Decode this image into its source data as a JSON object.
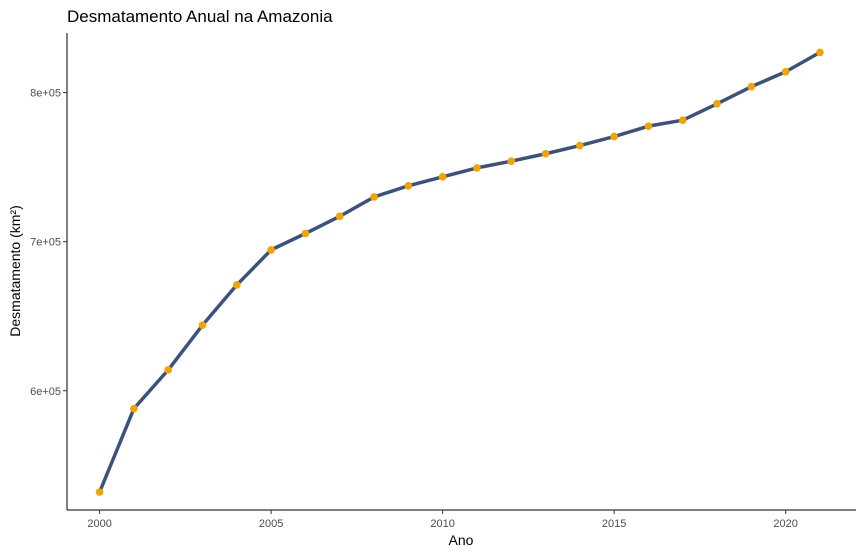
{
  "chart_data": {
    "type": "line",
    "title": "Desmatamento Anual na Amazonia",
    "xlabel": "Ano",
    "ylabel": "Desmatamento (km²)",
    "x_ticks": [
      2000,
      2005,
      2010,
      2015,
      2020
    ],
    "x_tick_labels": [
      "2000",
      "2005",
      "2010",
      "2015",
      "2020"
    ],
    "y_ticks": [
      600000,
      700000,
      800000
    ],
    "y_tick_labels": [
      "6e+05",
      "7e+05",
      "8e+05"
    ],
    "xlim": [
      1999.05,
      2022.05
    ],
    "ylim": [
      520000,
      840000
    ],
    "grid": false,
    "line_color": "#3b5280",
    "point_color": "#f5a300",
    "series": [
      {
        "x": [
          2000,
          2001,
          2002,
          2003,
          2004,
          2005,
          2006,
          2007,
          2008,
          2009,
          2010,
          2011,
          2012,
          2013,
          2014,
          2015,
          2016,
          2017,
          2018,
          2019,
          2020,
          2021
        ],
        "y": [
          532000,
          588000,
          614000,
          644000,
          671000,
          694500,
          705500,
          717000,
          730000,
          737500,
          743500,
          749500,
          754000,
          759000,
          764500,
          770500,
          777500,
          781500,
          792500,
          804000,
          814000,
          827000
        ]
      }
    ]
  }
}
